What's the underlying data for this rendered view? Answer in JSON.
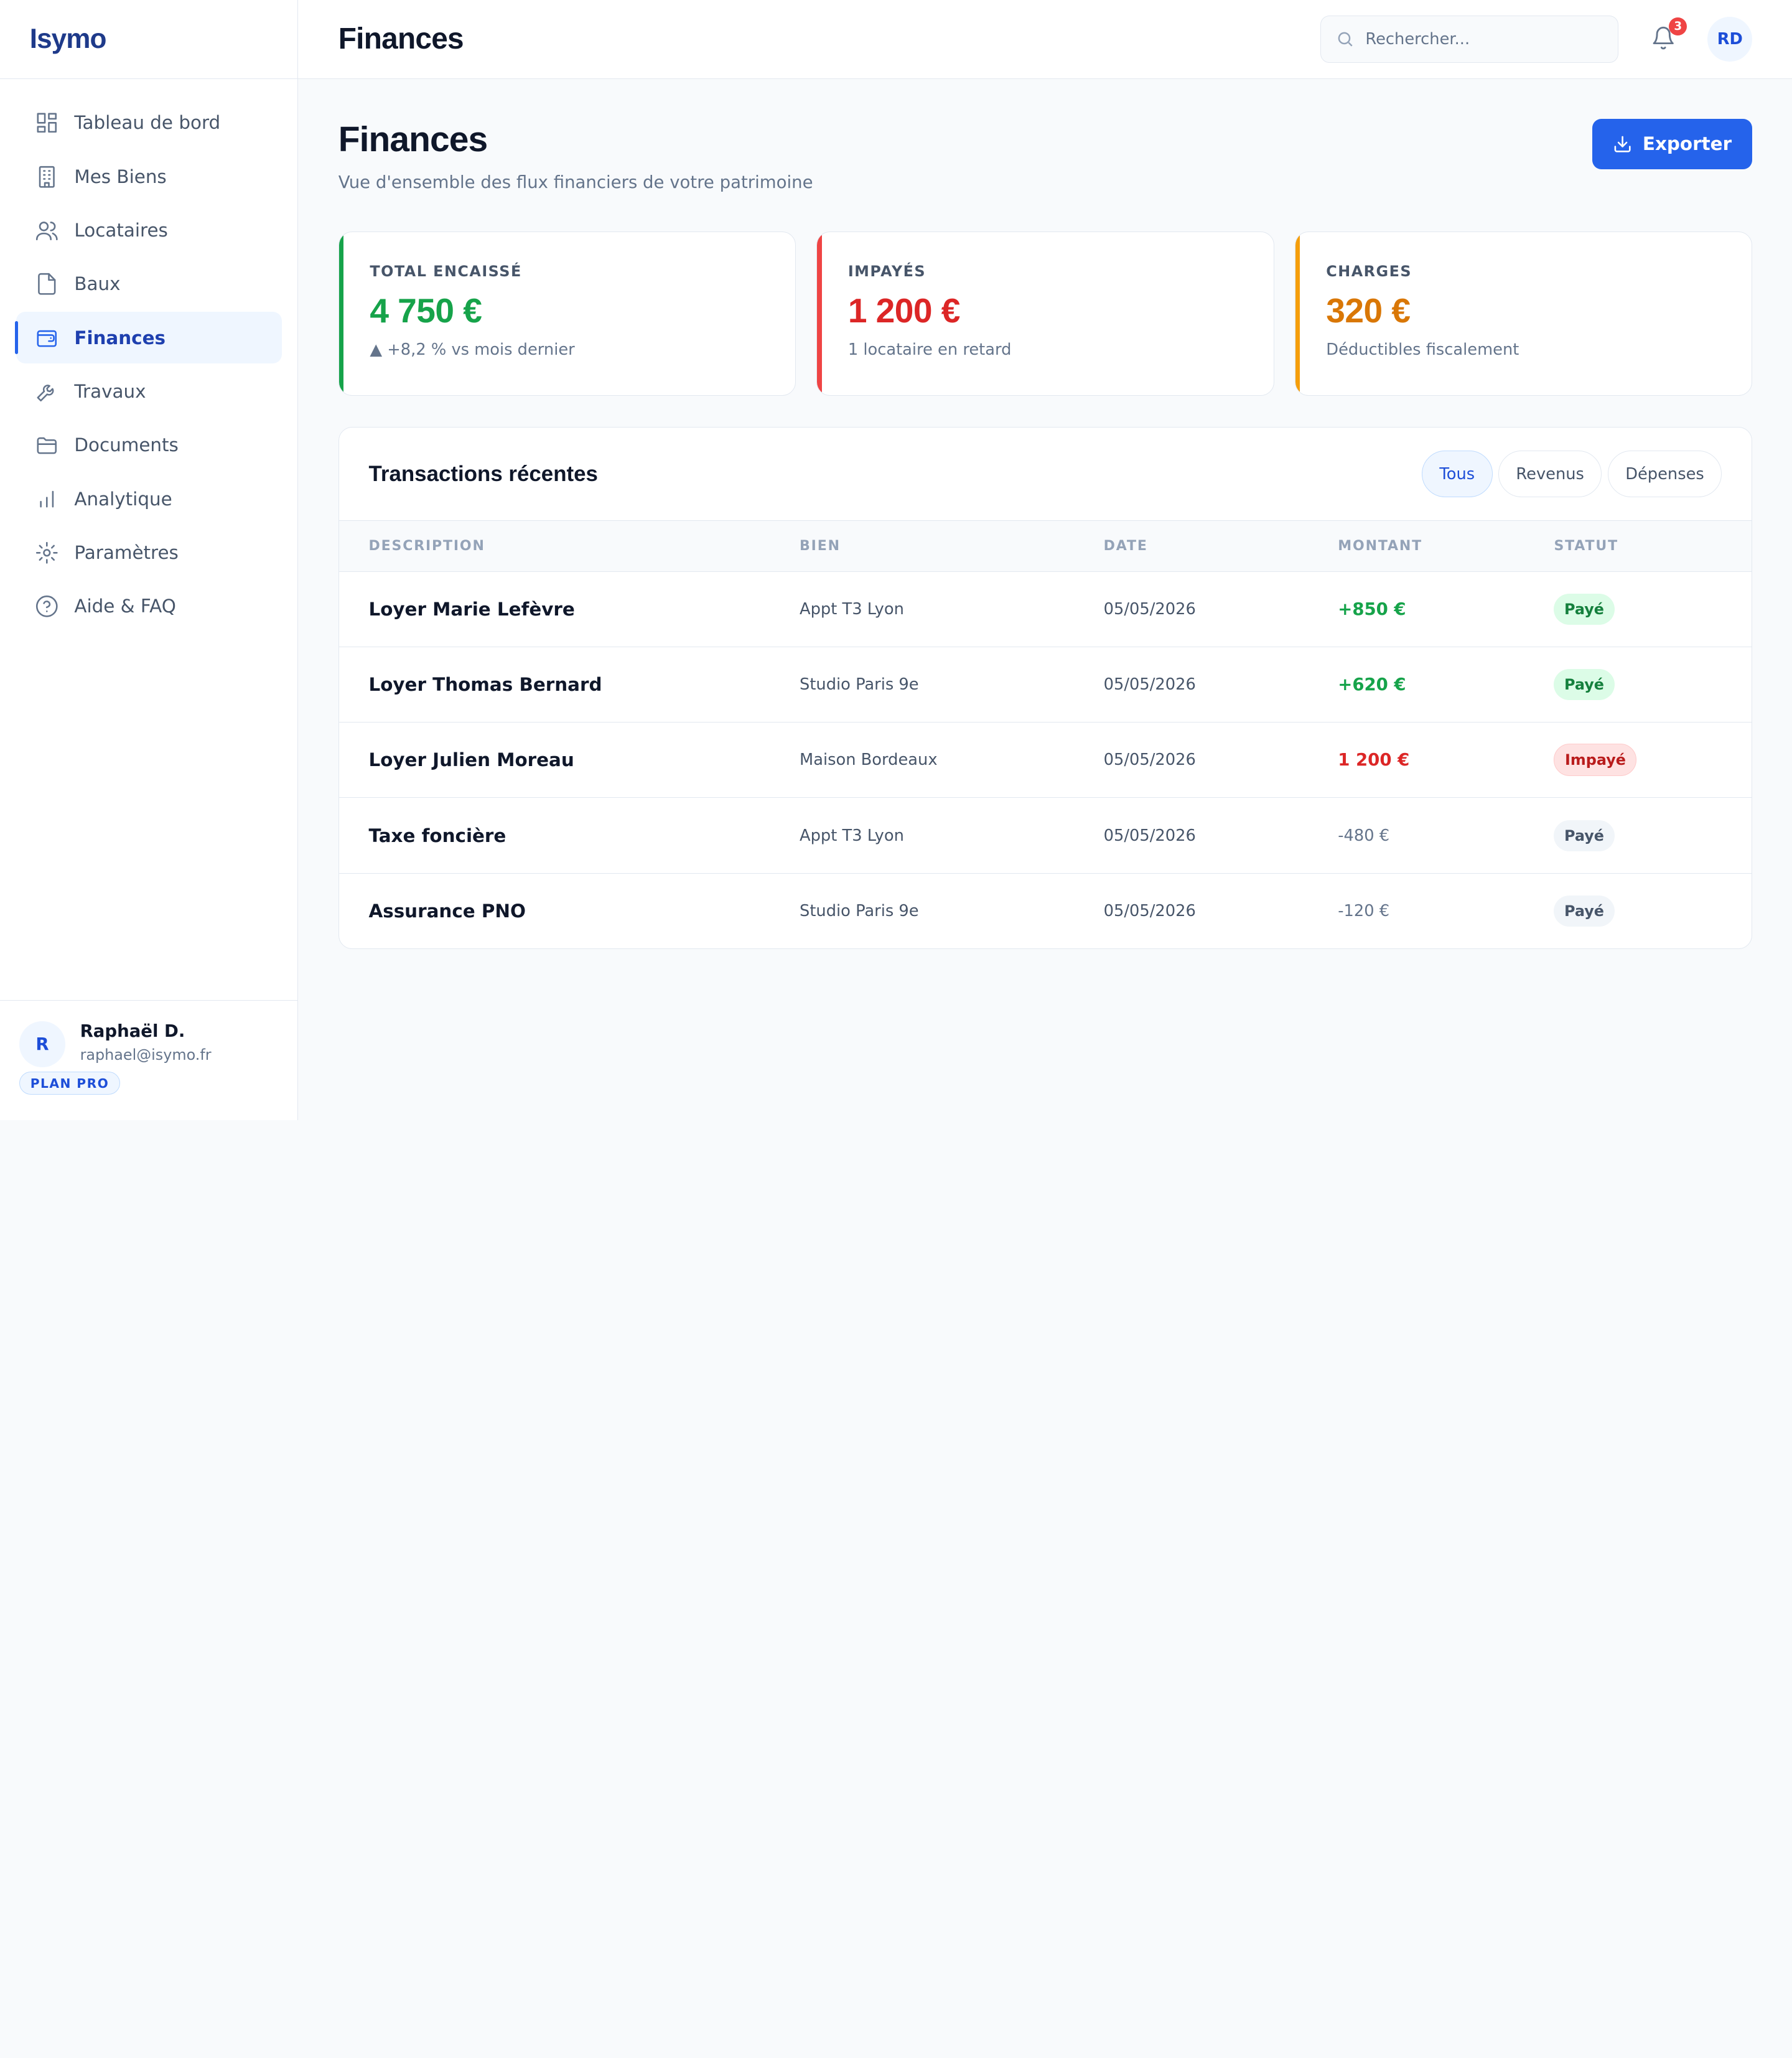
{
  "brand": "Isymo",
  "sidebar": {
    "items": [
      {
        "label": "Tableau de bord",
        "icon": "dashboard-icon"
      },
      {
        "label": "Mes Biens",
        "icon": "building-icon"
      },
      {
        "label": "Locataires",
        "icon": "users-icon"
      },
      {
        "label": "Baux",
        "icon": "file-icon"
      },
      {
        "label": "Finances",
        "icon": "wallet-icon",
        "active": true
      },
      {
        "label": "Travaux",
        "icon": "wrench-icon"
      },
      {
        "label": "Documents",
        "icon": "folder-icon"
      },
      {
        "label": "Analytique",
        "icon": "bar-chart-icon"
      },
      {
        "label": "Paramètres",
        "icon": "gear-icon"
      },
      {
        "label": "Aide & FAQ",
        "icon": "help-icon"
      }
    ],
    "user": {
      "initial": "R",
      "name": "Raphaël D.",
      "email": "raphael@isymo.fr",
      "plan": "PLAN PRO"
    }
  },
  "topbar": {
    "title": "Finances",
    "search_placeholder": "Rechercher...",
    "notifications_count": "3",
    "avatar_initials": "RD"
  },
  "page": {
    "title": "Finances",
    "subtitle": "Vue d'ensemble des flux financiers de votre patrimoine",
    "export_label": "Exporter"
  },
  "cards": [
    {
      "label": "TOTAL ENCAISSÉ",
      "value": "4 750 €",
      "note": "▲ +8,2 % vs mois dernier",
      "color": "#16a34a"
    },
    {
      "label": "IMPAYÉS",
      "value": "1 200 €",
      "note": "1 locataire en retard",
      "color": "#dc2626"
    },
    {
      "label": "CHARGES",
      "value": "320 €",
      "note": "Déductibles fiscalement",
      "color": "#d97706"
    }
  ],
  "transactions": {
    "title": "Transactions récentes",
    "filters": [
      "Tous",
      "Revenus",
      "Dépenses"
    ],
    "active_filter": "Tous",
    "columns": [
      "DESCRIPTION",
      "BIEN",
      "DATE",
      "MONTANT",
      "STATUT"
    ],
    "rows": [
      {
        "description": "Loyer Marie Lefèvre",
        "bien": "Appt T3 Lyon",
        "date": "05/05/2026",
        "montant": "+850 €",
        "statut": "Payé"
      },
      {
        "description": "Loyer Thomas Bernard",
        "bien": "Studio Paris 9e",
        "date": "05/05/2026",
        "montant": "+620 €",
        "statut": "Payé"
      },
      {
        "description": "Loyer Julien Moreau",
        "bien": "Maison Bordeaux",
        "date": "05/05/2026",
        "montant": "1 200 €",
        "statut": "Impayé"
      },
      {
        "description": "Taxe foncière",
        "bien": "Appt T3 Lyon",
        "date": "05/05/2026",
        "montant": "-480 €",
        "statut": "Payé"
      },
      {
        "description": "Assurance PNO",
        "bien": "Studio Paris 9e",
        "date": "05/05/2026",
        "montant": "-120 €",
        "statut": "Payé"
      }
    ]
  },
  "colors": {
    "accent": "#2563eb",
    "positive": "#16a34a",
    "negative": "#dc2626",
    "warning": "#d97706"
  }
}
